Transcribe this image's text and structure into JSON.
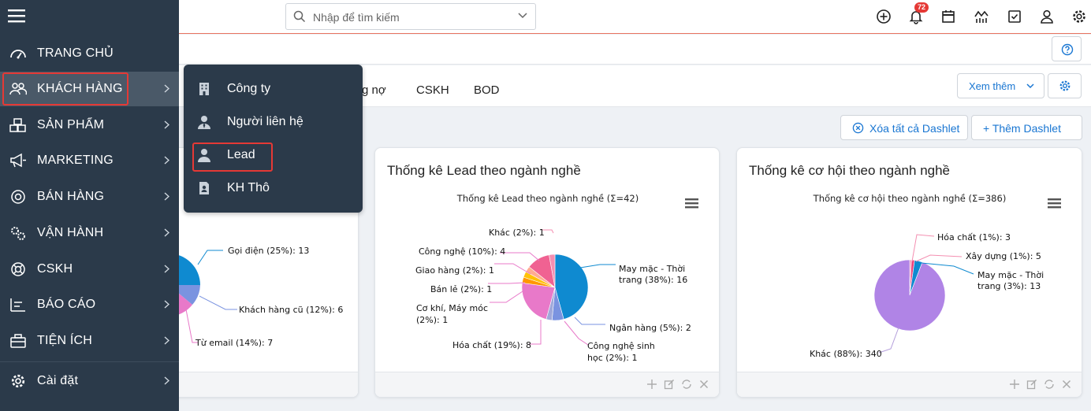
{
  "search": {
    "placeholder": "Nhập để tìm kiếm"
  },
  "header": {
    "notification_count": "72"
  },
  "tabs": [
    {
      "label": "g nợ"
    },
    {
      "label": "CSKH"
    },
    {
      "label": "BOD"
    }
  ],
  "toolbar": {
    "xem_them": "Xem thêm",
    "clear_all": "Xóa tất cả Dashlet",
    "add": "+ Thêm Dashlet"
  },
  "sidebar": {
    "items": [
      {
        "label": "TRANG CHỦ",
        "icon": "dashboard-icon"
      },
      {
        "label": "KHÁCH HÀNG",
        "icon": "users-icon"
      },
      {
        "label": "SẢN PHẨM",
        "icon": "boxes-icon"
      },
      {
        "label": "MARKETING",
        "icon": "megaphone-icon"
      },
      {
        "label": "BÁN HÀNG",
        "icon": "target-icon"
      },
      {
        "label": "VẬN HÀNH",
        "icon": "gears-icon"
      },
      {
        "label": "CSKH",
        "icon": "lifebuoy-icon"
      },
      {
        "label": "BÁO CÁO",
        "icon": "report-icon"
      },
      {
        "label": "TIỆN ÍCH",
        "icon": "toolbox-icon"
      },
      {
        "label": "Cài đặt",
        "icon": "gear-icon"
      }
    ]
  },
  "submenu": {
    "items": [
      {
        "label": "Công ty",
        "icon": "building-icon"
      },
      {
        "label": "Người liên hệ",
        "icon": "contact-icon"
      },
      {
        "label": "Lead",
        "icon": "person-icon"
      },
      {
        "label": "KH Thô",
        "icon": "id-card-icon"
      }
    ]
  },
  "cards": {
    "left": {
      "labels": [
        "Gọi điện (25%): 13",
        "Khách hàng cũ (12%): 6",
        "Từ email (14%): 7"
      ]
    },
    "lead": {
      "title": "Thống kê Lead theo ngành nghề",
      "chart_title": "Thống kê Lead theo ngành nghề (Σ=42)"
    },
    "opp": {
      "title": "Thống kê cơ hội theo ngành nghề",
      "chart_title": "Thống kê cơ hội theo ngành nghề (Σ=386)"
    }
  },
  "chart_data": [
    {
      "type": "pie",
      "title": "",
      "slices": [
        {
          "label": "Gọi điện",
          "percent": 25,
          "value": 13
        },
        {
          "label": "Khách hàng cũ",
          "percent": 12,
          "value": 6
        },
        {
          "label": "Từ email",
          "percent": 14,
          "value": 7
        }
      ]
    },
    {
      "type": "pie",
      "title": "Thống kê Lead theo ngành nghề (Σ=42)",
      "slices": [
        {
          "label": "May mặc - Thời trang",
          "percent": 38,
          "value": 16
        },
        {
          "label": "Ngân hàng",
          "percent": 5,
          "value": 2
        },
        {
          "label": "Công nghệ sinh học",
          "percent": 2,
          "value": 1
        },
        {
          "label": "Hóa chất",
          "percent": 19,
          "value": 8
        },
        {
          "label": "Cơ khí, Máy móc",
          "percent": 2,
          "value": 1
        },
        {
          "label": "Bán lẻ",
          "percent": 2,
          "value": 1
        },
        {
          "label": "Giao hàng",
          "percent": 2,
          "value": 1
        },
        {
          "label": "Công nghệ",
          "percent": 10,
          "value": 4
        },
        {
          "label": "Khác",
          "percent": 2,
          "value": 1
        }
      ]
    },
    {
      "type": "pie",
      "title": "Thống kê cơ hội theo ngành nghề (Σ=386)",
      "slices": [
        {
          "label": "Hóa chất",
          "percent": 1,
          "value": 3
        },
        {
          "label": "Xây dựng",
          "percent": 1,
          "value": 5
        },
        {
          "label": "May mặc - Thời trang",
          "percent": 3,
          "value": 13
        },
        {
          "label": "Khác",
          "percent": 88,
          "value": 340
        }
      ]
    }
  ],
  "labels": {
    "lead": [
      "Khác (2%): 1",
      "Công nghệ (10%): 4",
      "Giao hàng (2%): 1",
      "Bán lẻ (2%): 1",
      "Cơ khí, Máy móc",
      "(2%): 1",
      "Hóa chất (19%): 8",
      "May mặc - Thời",
      "trang (38%): 16",
      "Ngân hàng (5%): 2",
      "Công nghệ sinh",
      "học (2%): 1"
    ],
    "opp": [
      "Hóa chất (1%): 3",
      "Xây dựng (1%): 5",
      "May mặc - Thời",
      "trang (3%): 13",
      "Khác (88%): 340"
    ]
  },
  "colors": {
    "sidebar": "#2b3a4a",
    "accent": "#1976d2",
    "highlight_border": "#e53935"
  }
}
